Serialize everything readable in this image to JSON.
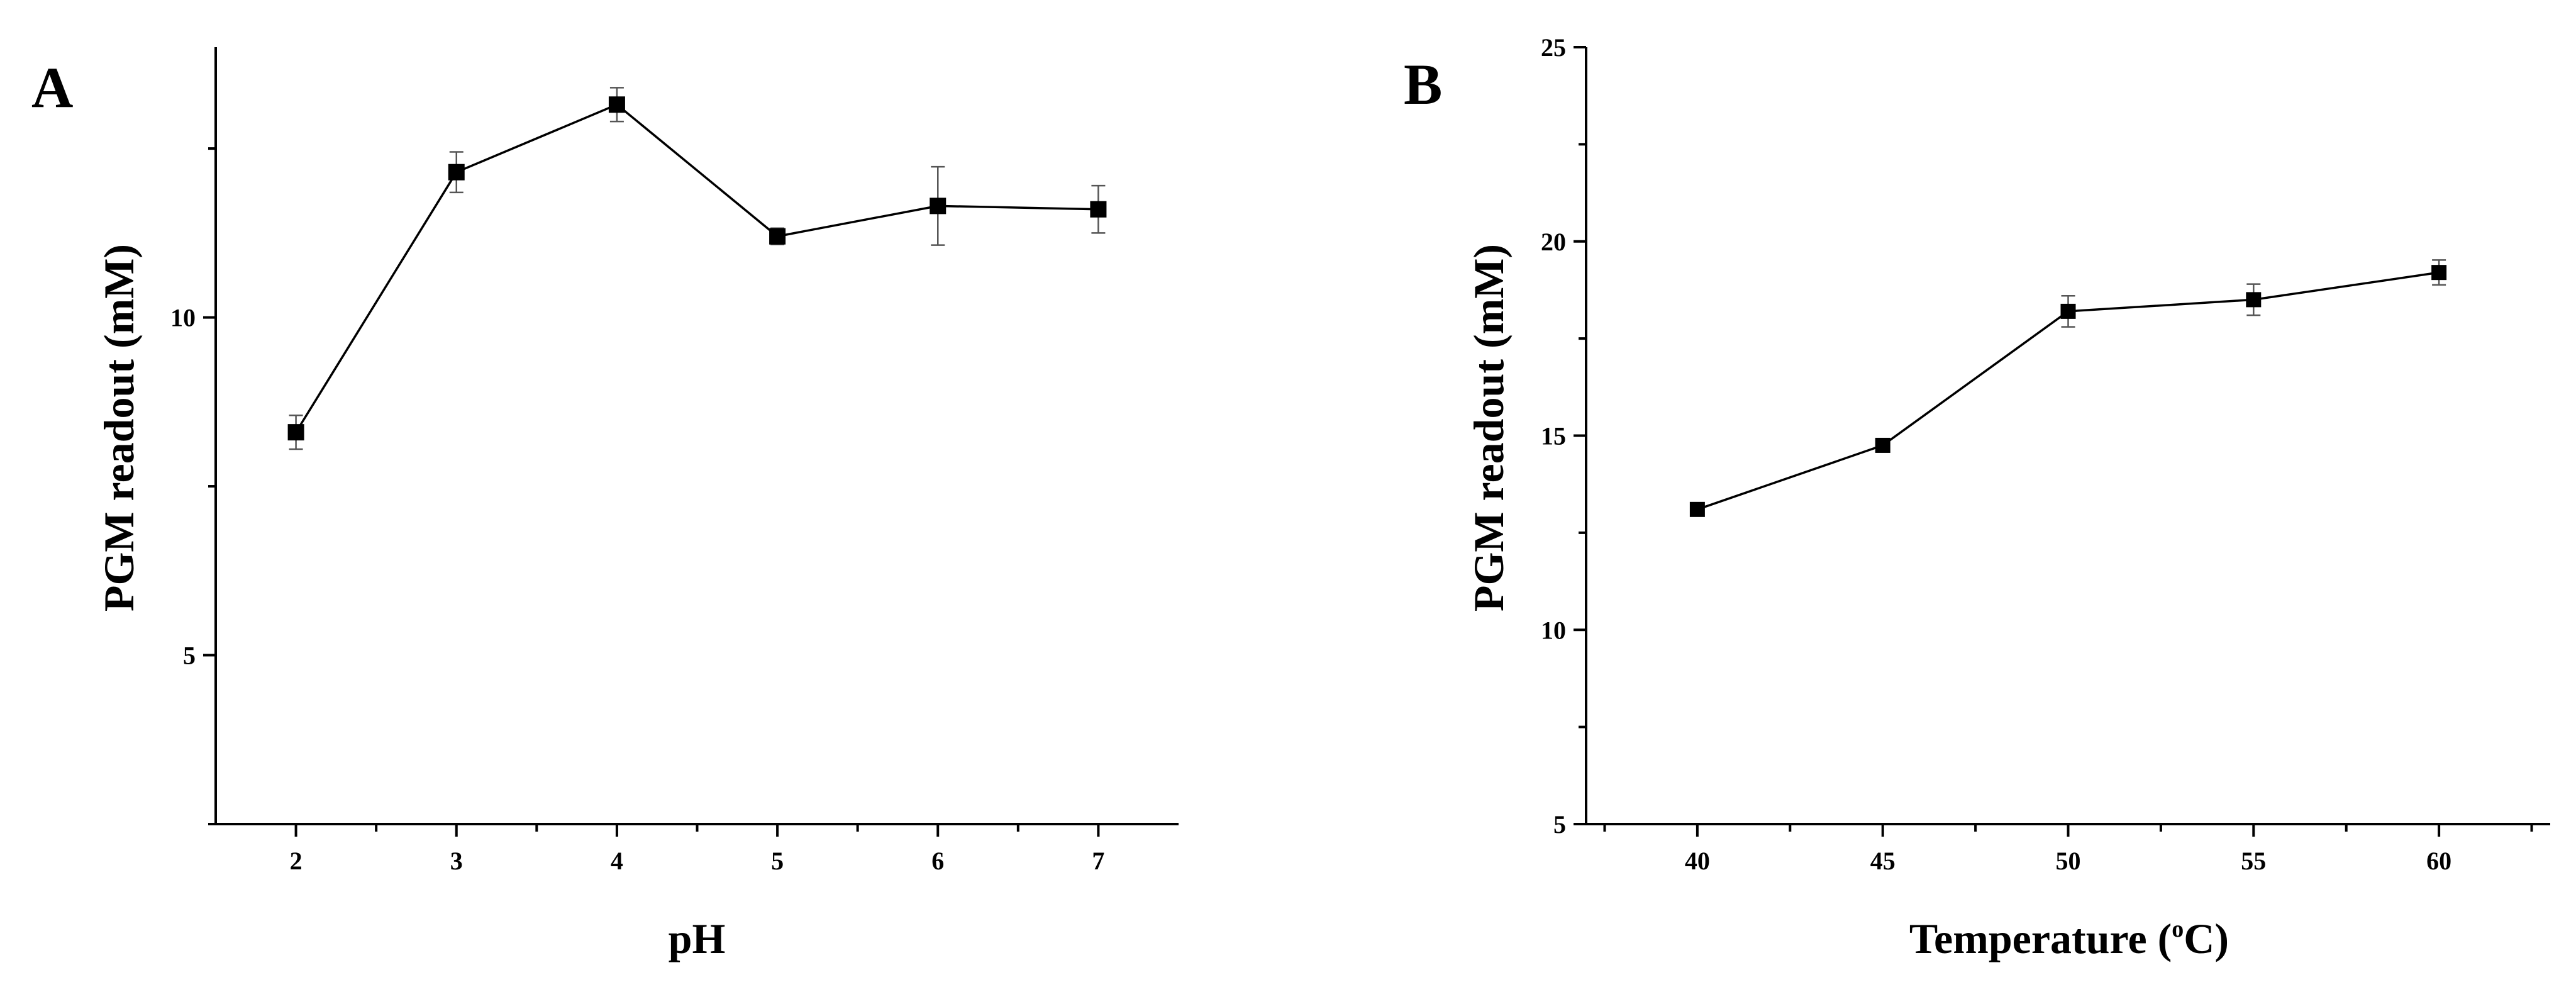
{
  "chart_data": [
    {
      "type": "line",
      "panel_label": "A",
      "xlabel": "pH",
      "ylabel": "PGM readout (mM)",
      "x": [
        2,
        3,
        4,
        5,
        6,
        7
      ],
      "xticks": [
        "2",
        "3",
        "4",
        "5",
        "6",
        "7"
      ],
      "yticks": [
        "5",
        "10"
      ],
      "ytick_values": [
        5,
        10
      ],
      "xlim": [
        1.5,
        7.5
      ],
      "ylim": [
        2.5,
        14
      ],
      "grid": false,
      "series": [
        {
          "values": [
            8.3,
            12.15,
            13.15,
            11.2,
            11.65,
            11.6
          ],
          "errors": [
            0.25,
            0.3,
            0.25,
            0.12,
            0.58,
            0.35
          ],
          "marker": "square",
          "color": "#000000"
        }
      ]
    },
    {
      "type": "line",
      "panel_label": "B",
      "xlabel": "Temperature (",
      "xlabel_degree": "o",
      "xlabel_unit": "C)",
      "ylabel": "PGM readout (mM)",
      "x": [
        40,
        45,
        50,
        55,
        60
      ],
      "xticks": [
        "40",
        "45",
        "50",
        "55",
        "60"
      ],
      "yticks": [
        "5",
        "10",
        "15",
        "20",
        "25"
      ],
      "ytick_values": [
        5,
        10,
        15,
        20,
        25
      ],
      "xlim": [
        37,
        63
      ],
      "ylim": [
        5,
        25
      ],
      "grid": false,
      "series": [
        {
          "values": [
            13.1,
            14.75,
            18.2,
            18.5,
            19.2
          ],
          "errors": [
            0.1,
            0.1,
            0.4,
            0.4,
            0.32
          ],
          "marker": "square",
          "color": "#000000"
        }
      ]
    }
  ]
}
